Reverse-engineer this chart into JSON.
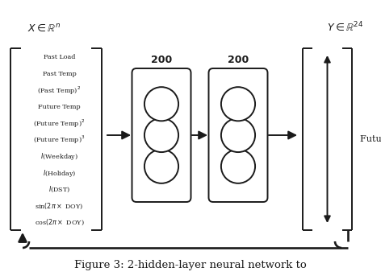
{
  "title": "Figure 3: 2-hidden-layer neural network to",
  "x_label": "$X \\in \\mathbb{R}^n$",
  "y_label": "$Y \\in \\mathbb{R}^{24}$",
  "input_features": [
    "Past Load",
    "Past Temp",
    "(Past Temp)$^2$",
    "Future Temp",
    "(Future Temp)$^2$",
    "(Future Temp)$^3$",
    "$I$(Weekday)",
    "$I$(Holiday)",
    "$I$(DST)",
    "sin$(2\\pi \\times$ DOY)",
    "cos$(2\\pi\\times$ DOY)"
  ],
  "hidden_labels": [
    "200",
    "200"
  ],
  "output_label": "Future Load",
  "bg_color": "#ffffff",
  "box_color": "#1a1a1a",
  "neuron_fill": "#ffffff",
  "neuron_edge": "#1a1a1a",
  "arrow_color": "#1a1a1a",
  "figsize": [
    4.72,
    3.48
  ],
  "dpi": 100
}
